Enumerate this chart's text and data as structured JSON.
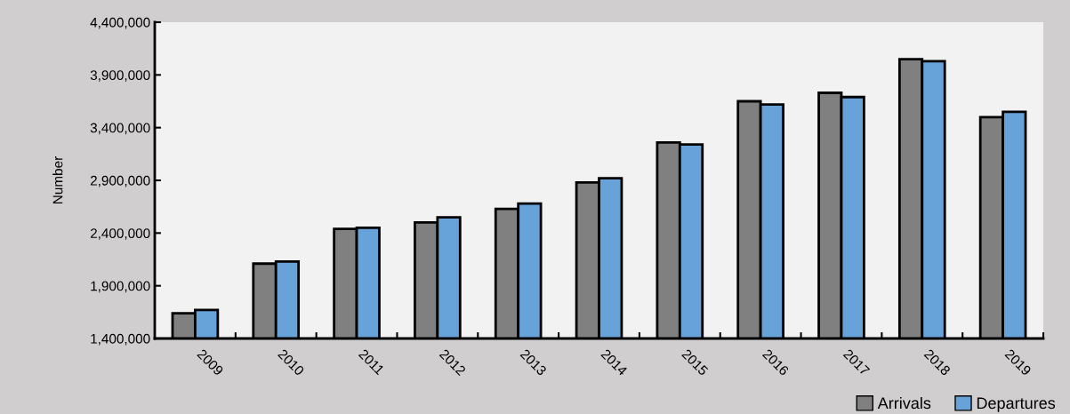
{
  "chart_data": {
    "type": "bar",
    "ylabel": "Number",
    "categories": [
      "2009",
      "2010",
      "2011",
      "2012",
      "2013",
      "2014",
      "2015",
      "2016",
      "2017",
      "2018",
      "2019"
    ],
    "series": [
      {
        "name": "Arrivals",
        "color": "#808080",
        "values": [
          1640000,
          2110000,
          2440000,
          2500000,
          2630000,
          2880000,
          3260000,
          3650000,
          3730000,
          4050000,
          3500000
        ]
      },
      {
        "name": "Departures",
        "color": "#67a3d9",
        "values": [
          1670000,
          2130000,
          2450000,
          2550000,
          2680000,
          2920000,
          3240000,
          3620000,
          3690000,
          4030000,
          3550000
        ]
      }
    ],
    "ylim": [
      1400000,
      4400000
    ],
    "yticks": [
      {
        "value": 1400000,
        "label": "1,400,000"
      },
      {
        "value": 1900000,
        "label": "1,900,000"
      },
      {
        "value": 2400000,
        "label": "2,400,000"
      },
      {
        "value": 2900000,
        "label": "2,900,000"
      },
      {
        "value": 3400000,
        "label": "3,400,000"
      },
      {
        "value": 3900000,
        "label": "3,900,000"
      },
      {
        "value": 4400000,
        "label": "4,400,000"
      }
    ],
    "grid": false,
    "legend": "bottom right"
  }
}
